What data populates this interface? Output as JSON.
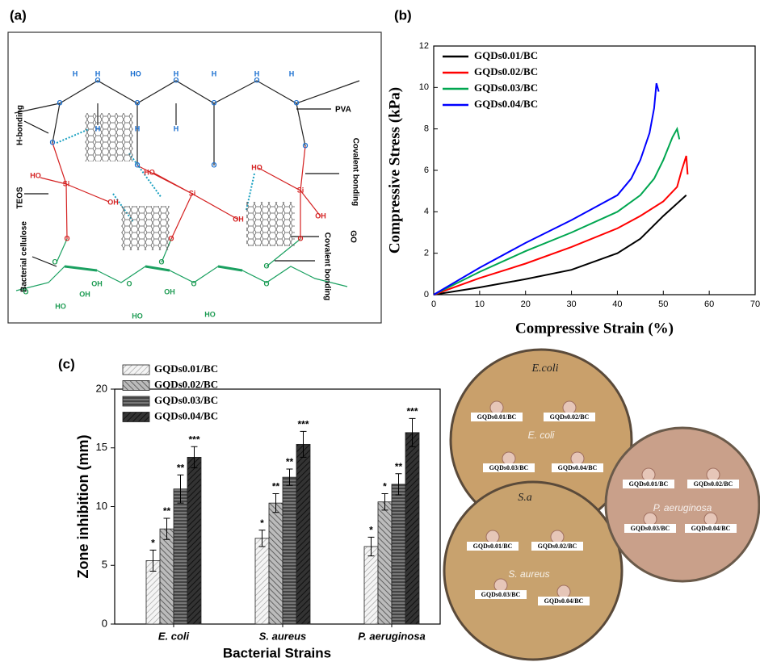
{
  "panel_labels": [
    "(a)",
    "(b)",
    "(c)"
  ],
  "diagram": {
    "labels": [
      "H-bonding",
      "TEOS",
      "Bacterial cellulose",
      "PVA",
      "Covalent bonding",
      "GO",
      "Covalent bonding"
    ],
    "atoms": [
      "H",
      "H",
      "HO",
      "H",
      "H",
      "H",
      "H",
      "O",
      "O",
      "O",
      "O",
      "O",
      "O",
      "O",
      "H",
      "H",
      "H",
      "O",
      "O",
      "O",
      "O",
      "HO",
      "HO",
      "HO",
      "Si",
      "Si",
      "Si",
      "OH",
      "OH",
      "OH",
      "O",
      "O",
      "O",
      "O",
      "OH",
      "O",
      "O",
      "O",
      "O",
      "O",
      "O",
      "HO",
      "HO",
      "HO",
      "OH",
      "OH"
    ]
  },
  "chart_data": [
    {
      "type": "line",
      "xlabel": "Compressive Strain (%)",
      "ylabel": "Compressive Stress (kPa)",
      "xlim": [
        0,
        70
      ],
      "xticks": [
        0,
        10,
        20,
        30,
        40,
        50,
        60,
        70
      ],
      "ylim": [
        0,
        12
      ],
      "yticks": [
        0,
        2,
        4,
        6,
        8,
        10,
        12
      ],
      "legend": "upper left",
      "series": [
        {
          "name": "GQDs0.01/BC",
          "color": "#000000",
          "x": [
            0,
            10,
            20,
            30,
            40,
            45,
            50,
            53,
            55
          ],
          "values": [
            0,
            0.35,
            0.75,
            1.2,
            2.0,
            2.7,
            3.8,
            4.4,
            4.8
          ]
        },
        {
          "name": "GQDs0.02/BC",
          "color": "#ff0000",
          "x": [
            0,
            10,
            20,
            30,
            40,
            45,
            50,
            53,
            54,
            55,
            55.3
          ],
          "values": [
            0,
            0.8,
            1.5,
            2.3,
            3.2,
            3.8,
            4.5,
            5.2,
            6.0,
            6.7,
            5.8
          ]
        },
        {
          "name": "GQDs0.03/BC",
          "color": "#00a650",
          "x": [
            0,
            10,
            20,
            30,
            40,
            45,
            48,
            50,
            52,
            53,
            53.5
          ],
          "values": [
            0,
            1.1,
            2.1,
            3.0,
            4.0,
            4.8,
            5.6,
            6.5,
            7.6,
            8.0,
            7.5
          ]
        },
        {
          "name": "GQDs0.04/BC",
          "color": "#0000ff",
          "x": [
            0,
            10,
            20,
            30,
            40,
            43,
            45,
            47,
            48,
            48.5,
            49
          ],
          "values": [
            0,
            1.3,
            2.5,
            3.6,
            4.8,
            5.6,
            6.5,
            7.8,
            9.0,
            10.2,
            9.8
          ]
        }
      ]
    },
    {
      "type": "bar",
      "xlabel": "Bacterial Strains",
      "ylabel": "Zone inhibition (mm)",
      "categories": [
        "E. coli",
        "S. aureus",
        "P. aeruginosa"
      ],
      "ylim": [
        0,
        20
      ],
      "yticks": [
        0,
        5,
        10,
        15,
        20
      ],
      "legend": "upper left",
      "series": [
        {
          "name": "GQDs0.01/BC",
          "color": "#e6e6e6",
          "values": [
            5.4,
            7.3,
            6.6
          ],
          "errors": [
            0.9,
            0.7,
            0.8
          ],
          "significance": [
            "*",
            "*",
            "*"
          ]
        },
        {
          "name": "GQDs0.02/BC",
          "color": "#a0a0a0",
          "values": [
            8.1,
            10.3,
            10.4
          ],
          "errors": [
            0.9,
            0.8,
            0.7
          ],
          "significance": [
            "**",
            "**",
            "*"
          ]
        },
        {
          "name": "GQDs0.03/BC",
          "color": "#666666",
          "values": [
            11.5,
            12.5,
            11.9
          ],
          "errors": [
            1.2,
            0.7,
            0.9
          ],
          "significance": [
            "**",
            "**",
            "**"
          ]
        },
        {
          "name": "GQDs0.04/BC",
          "color": "#2a2a2a",
          "values": [
            14.2,
            15.3,
            16.3
          ],
          "errors": [
            0.9,
            1.1,
            1.2
          ],
          "significance": [
            "***",
            "***",
            "***"
          ]
        }
      ]
    }
  ],
  "plates": [
    {
      "name": "E. coli",
      "marker": "E.coli",
      "wells": [
        "GQDs0.01/BC",
        "GQDs0.02/BC",
        "GQDs0.03/BC",
        "GQDs0.04/BC"
      ]
    },
    {
      "name": "S. aureus",
      "marker": "S.a",
      "wells": [
        "GQDs0.01/BC",
        "GQDs0.02/BC",
        "GQDs0.03/BC",
        "GQDs0.04/BC"
      ]
    },
    {
      "name": "P. aeruginosa",
      "wells": [
        "GQDs0.01/BC",
        "GQDs0.02/BC",
        "GQDs0.03/BC",
        "GQDs0.04/BC"
      ]
    }
  ]
}
